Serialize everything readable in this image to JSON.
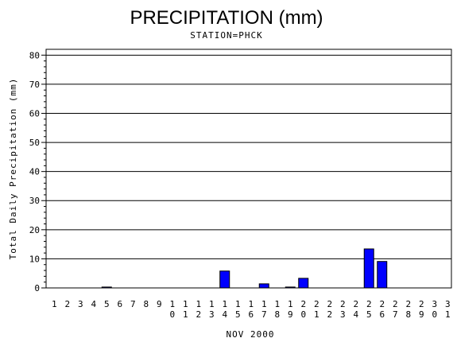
{
  "chart_data": {
    "type": "bar",
    "title": "PRECIPITATION (mm)",
    "subtitle": "STATION=PHCK",
    "xlabel": "NOV 2000",
    "ylabel": "Total Daily Precipitation (mm)",
    "ylim": [
      0,
      82
    ],
    "yticks": [
      0,
      10,
      20,
      30,
      40,
      50,
      60,
      70,
      80
    ],
    "grid": true,
    "bar_color": "#0000ff",
    "categories": [
      "1",
      "2",
      "3",
      "4",
      "5",
      "6",
      "7",
      "8",
      "9",
      "10",
      "11",
      "12",
      "13",
      "14",
      "15",
      "16",
      "17",
      "18",
      "19",
      "20",
      "21",
      "22",
      "23",
      "24",
      "25",
      "26",
      "27",
      "28",
      "29",
      "30",
      "31"
    ],
    "values": [
      0,
      0,
      0,
      0,
      0.3,
      0,
      0,
      0,
      0,
      0,
      0,
      0,
      0,
      5.8,
      0,
      0,
      1.4,
      0,
      0.3,
      3.3,
      0,
      0,
      0,
      0,
      13.4,
      9.1,
      0,
      0,
      0,
      0,
      0
    ]
  }
}
